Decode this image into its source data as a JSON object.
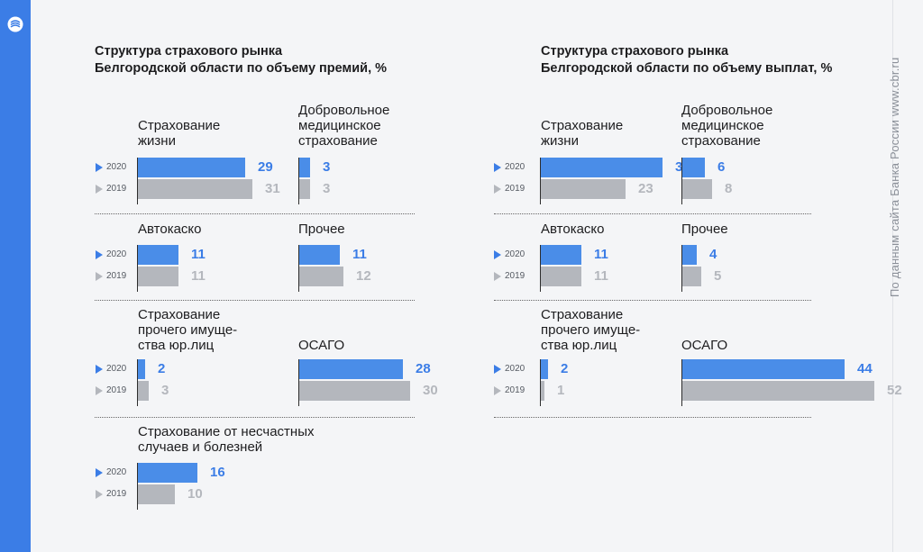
{
  "source": "По данным сайта Банка России www.cbr.ru",
  "colors": {
    "y2020": "#4a8de8",
    "y2019": "#b4b7bd"
  },
  "chart_data": [
    {
      "type": "bar",
      "title": "Структура страхового рынка\nБелгородской области по объему премий, %",
      "series_names": [
        "2020",
        "2019"
      ],
      "categories": [
        {
          "name": "Страхование\nжизни",
          "v2020": 29,
          "v2019": 31
        },
        {
          "name": "Добровольное\nмедицинское\nстрахование",
          "v2020": 3,
          "v2019": 3
        },
        {
          "name": "Автокаско",
          "v2020": 11,
          "v2019": 11
        },
        {
          "name": "Прочее",
          "v2020": 11,
          "v2019": 12
        },
        {
          "name": "Страхование\nпрочего имуще-\nства юр.лиц",
          "v2020": 2,
          "v2019": 3
        },
        {
          "name": "ОСАГО",
          "v2020": 28,
          "v2019": 30
        },
        {
          "name": "Страхование от несчастных\nслучаев и болезней",
          "v2020": 16,
          "v2019": 10
        }
      ]
    },
    {
      "type": "bar",
      "title": "Структура страхового рынка\nБелгородской области по объему выплат, %",
      "series_names": [
        "2020",
        "2019"
      ],
      "categories": [
        {
          "name": "Страхование\nжизни",
          "v2020": 33,
          "v2019": 23
        },
        {
          "name": "Добровольное\nмедицинское\nстрахование",
          "v2020": 6,
          "v2019": 8
        },
        {
          "name": "Автокаско",
          "v2020": 11,
          "v2019": 11
        },
        {
          "name": "Прочее",
          "v2020": 4,
          "v2019": 5
        },
        {
          "name": "Страхование\nпрочего имуще-\nства юр.лиц",
          "v2020": 2,
          "v2019": 1
        },
        {
          "name": "ОСАГО",
          "v2020": 44,
          "v2019": 52
        }
      ]
    }
  ]
}
